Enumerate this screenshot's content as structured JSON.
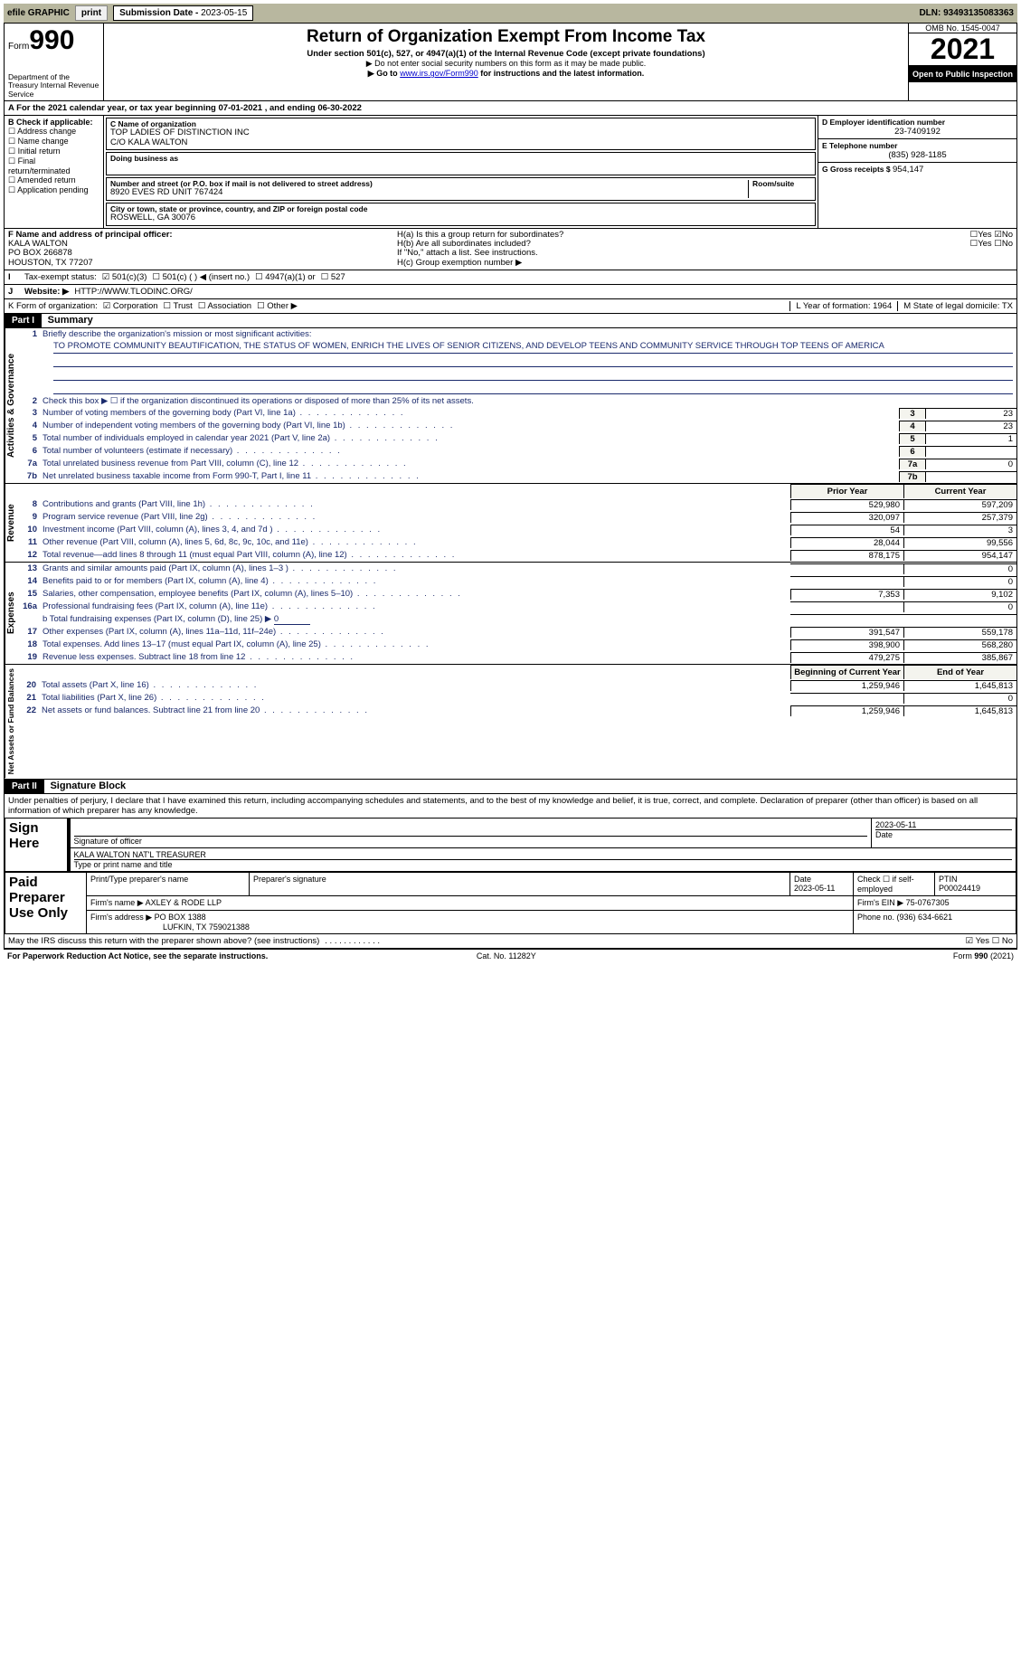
{
  "topbar": {
    "efile": "efile GRAPHIC",
    "print": "print",
    "subdate_label": "Submission Date - ",
    "subdate": "2023-05-15",
    "dln_label": "DLN: ",
    "dln": "93493135083363"
  },
  "header": {
    "form_label": "Form",
    "form_num": "990",
    "dept": "Department of the Treasury\nInternal Revenue Service",
    "title": "Return of Organization Exempt From Income Tax",
    "subtitle": "Under section 501(c), 527, or 4947(a)(1) of the Internal Revenue Code (except private foundations)",
    "warn1": "▶ Do not enter social security numbers on this form as it may be made public.",
    "warn2_pre": "▶ Go to ",
    "warn2_link": "www.irs.gov/Form990",
    "warn2_post": " for instructions and the latest information.",
    "omb": "OMB No. 1545-0047",
    "year": "2021",
    "open": "Open to Public Inspection"
  },
  "period": {
    "label_a": "A For the 2021 calendar year, or tax year beginning ",
    "begin": "07-01-2021",
    "middle": " , and ending ",
    "end": "06-30-2022"
  },
  "boxB": {
    "title": "B Check if applicable:",
    "opts": [
      "Address change",
      "Name change",
      "Initial return",
      "Final return/terminated",
      "Amended return",
      "Application pending"
    ]
  },
  "boxC": {
    "name_lbl": "C Name of organization",
    "name1": "TOP LADIES OF DISTINCTION INC",
    "name2": "C/O KALA WALTON",
    "dba_lbl": "Doing business as",
    "street_lbl": "Number and street (or P.O. box if mail is not delivered to street address)",
    "room_lbl": "Room/suite",
    "street": "8920 EVES RD UNIT 767424",
    "city_lbl": "City or town, state or province, country, and ZIP or foreign postal code",
    "city": "ROSWELL, GA  30076"
  },
  "boxD": {
    "lbl": "D Employer identification number",
    "val": "23-7409192"
  },
  "boxE": {
    "lbl": "E Telephone number",
    "val": "(835) 928-1185"
  },
  "boxG": {
    "lbl": "G Gross receipts $ ",
    "val": "954,147"
  },
  "boxF": {
    "lbl": "F Name and address of principal officer:",
    "name": "KALA WALTON",
    "addr1": "PO BOX 266878",
    "addr2": "HOUSTON, TX  77207"
  },
  "boxH": {
    "a": "H(a)  Is this a group return for subordinates?",
    "b": "H(b)  Are all subordinates included?",
    "bnote": "If \"No,\" attach a list. See instructions.",
    "c": "H(c)  Group exemption number ▶"
  },
  "lineI": {
    "lbl": "Tax-exempt status:",
    "opts": [
      "501(c)(3)",
      "501(c) (  ) ◀ (insert no.)",
      "4947(a)(1) or",
      "527"
    ]
  },
  "lineJ": {
    "lbl": "Website: ▶",
    "val": "HTTP://WWW.TLODINC.ORG/"
  },
  "lineK": {
    "lbl": "K Form of organization:",
    "opts": [
      "Corporation",
      "Trust",
      "Association",
      "Other ▶"
    ]
  },
  "lineL": {
    "lbl": "L Year of formation: ",
    "val": "1964"
  },
  "lineM": {
    "lbl": "M State of legal domicile: ",
    "val": "TX"
  },
  "partI": {
    "bar": "Part I",
    "title": "Summary",
    "side_ag": "Activities & Governance",
    "side_rev": "Revenue",
    "side_exp": "Expenses",
    "side_net": "Net Assets or Fund Balances",
    "l1": "Briefly describe the organization's mission or most significant activities:",
    "mission": "TO PROMOTE COMMUNITY BEAUTIFICATION, THE STATUS OF WOMEN, ENRICH THE LIVES OF SENIOR CITIZENS, AND DEVELOP TEENS AND COMMUNITY SERVICE THROUGH TOP TEENS OF AMERICA",
    "l2": "Check this box ▶ ☐ if the organization discontinued its operations or disposed of more than 25% of its net assets.",
    "lines_narrow": [
      {
        "n": "3",
        "t": "Number of voting members of the governing body (Part VI, line 1a)",
        "v": "23"
      },
      {
        "n": "4",
        "t": "Number of independent voting members of the governing body (Part VI, line 1b)",
        "v": "23"
      },
      {
        "n": "5",
        "t": "Total number of individuals employed in calendar year 2021 (Part V, line 2a)",
        "v": "1"
      },
      {
        "n": "6",
        "t": "Total number of volunteers (estimate if necessary)",
        "v": ""
      },
      {
        "n": "7a",
        "t": "Total unrelated business revenue from Part VIII, column (C), line 12",
        "v": "0"
      },
      {
        "n": "7b",
        "t": "Net unrelated business taxable income from Form 990-T, Part I, line 11",
        "v": ""
      }
    ],
    "hdr_prior": "Prior Year",
    "hdr_curr": "Current Year",
    "lines_twocol_rev": [
      {
        "n": "8",
        "t": "Contributions and grants (Part VIII, line 1h)",
        "p": "529,980",
        "c": "597,209"
      },
      {
        "n": "9",
        "t": "Program service revenue (Part VIII, line 2g)",
        "p": "320,097",
        "c": "257,379"
      },
      {
        "n": "10",
        "t": "Investment income (Part VIII, column (A), lines 3, 4, and 7d )",
        "p": "54",
        "c": "3"
      },
      {
        "n": "11",
        "t": "Other revenue (Part VIII, column (A), lines 5, 6d, 8c, 9c, 10c, and 11e)",
        "p": "28,044",
        "c": "99,556"
      },
      {
        "n": "12",
        "t": "Total revenue—add lines 8 through 11 (must equal Part VIII, column (A), line 12)",
        "p": "878,175",
        "c": "954,147"
      }
    ],
    "lines_twocol_exp": [
      {
        "n": "13",
        "t": "Grants and similar amounts paid (Part IX, column (A), lines 1–3 )",
        "p": "",
        "c": "0"
      },
      {
        "n": "14",
        "t": "Benefits paid to or for members (Part IX, column (A), line 4)",
        "p": "",
        "c": "0"
      },
      {
        "n": "15",
        "t": "Salaries, other compensation, employee benefits (Part IX, column (A), lines 5–10)",
        "p": "7,353",
        "c": "9,102"
      },
      {
        "n": "16a",
        "t": "Professional fundraising fees (Part IX, column (A), line 11e)",
        "p": "",
        "c": "0"
      }
    ],
    "l16b_pre": "b Total fundraising expenses (Part IX, column (D), line 25) ▶",
    "l16b_val": "0",
    "lines_twocol_exp2": [
      {
        "n": "17",
        "t": "Other expenses (Part IX, column (A), lines 11a–11d, 11f–24e)",
        "p": "391,547",
        "c": "559,178"
      },
      {
        "n": "18",
        "t": "Total expenses. Add lines 13–17 (must equal Part IX, column (A), line 25)",
        "p": "398,900",
        "c": "568,280"
      },
      {
        "n": "19",
        "t": "Revenue less expenses. Subtract line 18 from line 12",
        "p": "479,275",
        "c": "385,867"
      }
    ],
    "hdr_boy": "Beginning of Current Year",
    "hdr_eoy": "End of Year",
    "lines_twocol_net": [
      {
        "n": "20",
        "t": "Total assets (Part X, line 16)",
        "p": "1,259,946",
        "c": "1,645,813"
      },
      {
        "n": "21",
        "t": "Total liabilities (Part X, line 26)",
        "p": "",
        "c": "0"
      },
      {
        "n": "22",
        "t": "Net assets or fund balances. Subtract line 21 from line 20",
        "p": "1,259,946",
        "c": "1,645,813"
      }
    ]
  },
  "partII": {
    "bar": "Part II",
    "title": "Signature Block",
    "penalty": "Under penalties of perjury, I declare that I have examined this return, including accompanying schedules and statements, and to the best of my knowledge and belief, it is true, correct, and complete. Declaration of preparer (other than officer) is based on all information of which preparer has any knowledge.",
    "sign_here": "Sign Here",
    "sig_officer": "Signature of officer",
    "sig_date": "2023-05-11",
    "sig_date_lbl": "Date",
    "printed_name": "KALA WALTON  NAT'L TREASURER",
    "printed_lbl": "Type or print name and title",
    "paid": "Paid Preparer Use Only",
    "prep_name_lbl": "Print/Type preparer's name",
    "prep_sig_lbl": "Preparer's signature",
    "date_lbl": "Date",
    "date_val": "2023-05-11",
    "check_self": "Check ☐ if self-employed",
    "ptin_lbl": "PTIN",
    "ptin": "P00024419",
    "firm_name_lbl": "Firm's name    ▶ ",
    "firm_name": "AXLEY & RODE LLP",
    "firm_ein_lbl": "Firm's EIN ▶ ",
    "firm_ein": "75-0767305",
    "firm_addr_lbl": "Firm's address ▶ ",
    "firm_addr": "PO BOX 1388",
    "firm_addr2": "LUFKIN, TX  759021388",
    "phone_lbl": "Phone no. ",
    "phone": "(936) 634-6621",
    "discuss": "May the IRS discuss this return with the preparer shown above? (see instructions)"
  },
  "footer": {
    "l": "For Paperwork Reduction Act Notice, see the separate instructions.",
    "m": "Cat. No. 11282Y",
    "r": "Form 990 (2021)"
  },
  "colors": {
    "link": "#0000cc",
    "form_text": "#1a2a6c",
    "greybg": "#f4f4ee"
  }
}
